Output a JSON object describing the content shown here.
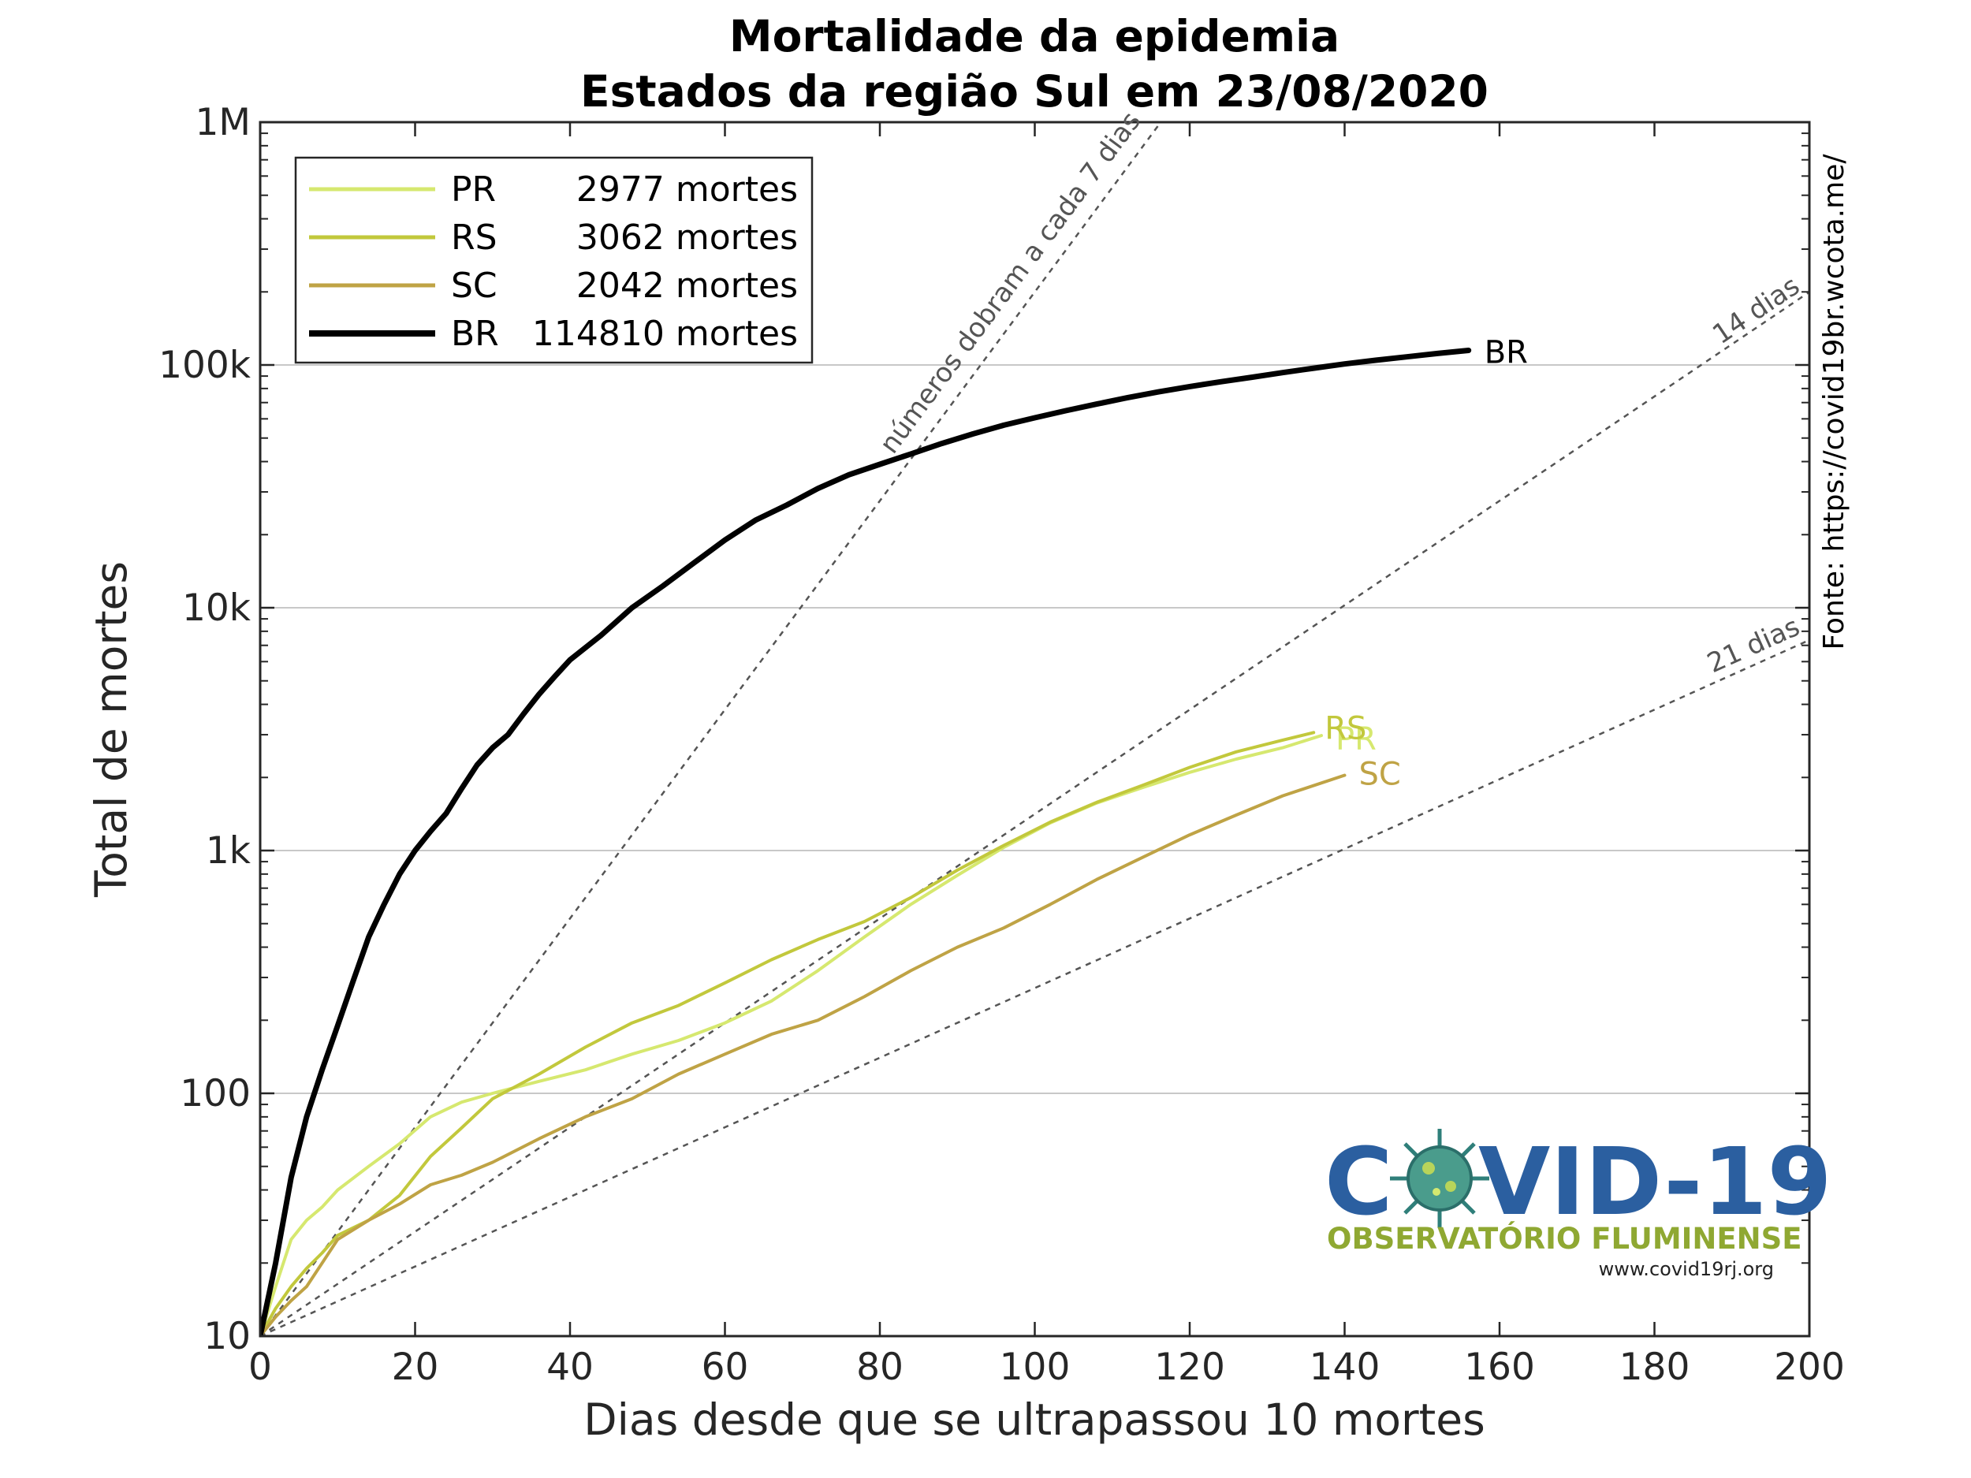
{
  "chart_data": {
    "type": "line",
    "title": [
      "Mortalidade da epidemia",
      "Estados da região Sul em 23/08/2020"
    ],
    "xlabel": "Dias desde que se ultrapassou 10 mortes",
    "ylabel": "Total de mortes",
    "xlim": [
      0,
      200
    ],
    "ylim": [
      10,
      1000000
    ],
    "yscale": "log",
    "grid": "horizontal",
    "legend_position": "top-left",
    "x_ticks": [
      0,
      20,
      40,
      60,
      80,
      100,
      120,
      140,
      160,
      180,
      200
    ],
    "x_tick_labels": [
      "0",
      "20",
      "40",
      "60",
      "80",
      "100",
      "120",
      "140",
      "160",
      "180",
      "200"
    ],
    "y_ticks": [
      10,
      100,
      1000,
      10000,
      100000,
      1000000
    ],
    "y_tick_labels": [
      "10",
      "100",
      "1k",
      "10k",
      "100k",
      "1M"
    ],
    "series": [
      {
        "name": "PR",
        "legend_label": "2977 mortes",
        "end_label": "PR",
        "color": "#d6e86f",
        "width": 4,
        "x": [
          0,
          2,
          4,
          6,
          8,
          10,
          14,
          18,
          22,
          26,
          30,
          36,
          42,
          48,
          54,
          60,
          66,
          72,
          78,
          84,
          90,
          96,
          102,
          108,
          114,
          120,
          126,
          132,
          137
        ],
        "y": [
          10,
          16,
          25,
          30,
          34,
          40,
          50,
          62,
          80,
          92,
          100,
          112,
          125,
          145,
          165,
          195,
          240,
          320,
          440,
          600,
          790,
          1030,
          1300,
          1570,
          1820,
          2100,
          2380,
          2650,
          2977
        ]
      },
      {
        "name": "RS",
        "legend_label": "3062 mortes",
        "end_label": "RS",
        "color": "#c2c83c",
        "width": 4,
        "x": [
          0,
          2,
          4,
          6,
          8,
          10,
          14,
          18,
          22,
          26,
          30,
          36,
          42,
          48,
          54,
          60,
          66,
          72,
          78,
          84,
          90,
          96,
          102,
          108,
          114,
          120,
          126,
          132,
          136
        ],
        "y": [
          10,
          13,
          16,
          19,
          22,
          26,
          30,
          38,
          55,
          72,
          95,
          120,
          155,
          195,
          230,
          285,
          355,
          430,
          510,
          640,
          830,
          1050,
          1310,
          1580,
          1860,
          2200,
          2550,
          2850,
          3062
        ]
      },
      {
        "name": "SC",
        "legend_label": "2042 mortes",
        "end_label": "SC",
        "color": "#bfa345",
        "width": 4,
        "x": [
          0,
          2,
          4,
          6,
          8,
          10,
          14,
          18,
          22,
          26,
          30,
          36,
          42,
          48,
          54,
          60,
          66,
          72,
          78,
          84,
          90,
          96,
          102,
          108,
          114,
          120,
          126,
          132,
          140
        ],
        "y": [
          10,
          12,
          14,
          16,
          20,
          25,
          30,
          35,
          42,
          46,
          52,
          65,
          80,
          95,
          120,
          145,
          175,
          200,
          250,
          320,
          400,
          480,
          600,
          760,
          940,
          1160,
          1400,
          1680,
          2042
        ]
      },
      {
        "name": "BR",
        "legend_label": "114810 mortes",
        "end_label": "BR",
        "color": "#000000",
        "width": 7,
        "x": [
          0,
          2,
          4,
          6,
          8,
          10,
          12,
          14,
          16,
          18,
          20,
          22,
          24,
          26,
          28,
          30,
          32,
          34,
          36,
          38,
          40,
          44,
          48,
          52,
          56,
          60,
          64,
          68,
          72,
          76,
          80,
          84,
          88,
          92,
          96,
          100,
          104,
          108,
          112,
          116,
          120,
          124,
          128,
          132,
          136,
          140,
          144,
          148,
          152,
          156
        ],
        "y": [
          10,
          20,
          45,
          80,
          125,
          190,
          290,
          440,
          600,
          800,
          1000,
          1200,
          1420,
          1800,
          2250,
          2650,
          3000,
          3650,
          4400,
          5200,
          6100,
          7700,
          10000,
          12300,
          15300,
          19000,
          23000,
          26500,
          31000,
          35300,
          39000,
          43000,
          47500,
          52000,
          56500,
          60600,
          64800,
          69000,
          73400,
          77500,
          81500,
          85300,
          89000,
          93000,
          97000,
          101000,
          104600,
          108000,
          111500,
          114810
        ]
      }
    ],
    "reference_lines": [
      {
        "label": "números dobram a cada 7 dias",
        "doubling_days": 7
      },
      {
        "label": "14 dias",
        "doubling_days": 14
      },
      {
        "label": "21 dias",
        "doubling_days": 21
      }
    ],
    "source_note": "Fonte: https://covid19br.wcota.me/"
  },
  "logo": {
    "title_left": "C",
    "title_right": "VID-19",
    "subtitle": "OBSERVATÓRIO FLUMINENSE",
    "url": "www.covid19rj.org"
  }
}
